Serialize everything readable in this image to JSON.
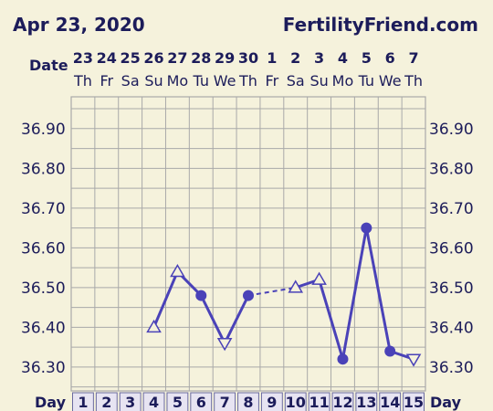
{
  "header": {
    "date": "Apr 23, 2020",
    "site": "FertilityFriend.com"
  },
  "labels": {
    "date_row": "Date",
    "day_row": "Day"
  },
  "chart_data": {
    "type": "line",
    "dates": [
      "23",
      "24",
      "25",
      "26",
      "27",
      "28",
      "29",
      "30",
      "1",
      "2",
      "3",
      "4",
      "5",
      "6",
      "7"
    ],
    "weekdays": [
      "Th",
      "Fr",
      "Sa",
      "Su",
      "Mo",
      "Tu",
      "We",
      "Th",
      "Fr",
      "Sa",
      "Su",
      "Mo",
      "Tu",
      "We",
      "Th"
    ],
    "cycle_days": [
      "1",
      "2",
      "3",
      "4",
      "5",
      "6",
      "7",
      "8",
      "9",
      "10",
      "11",
      "12",
      "13",
      "14",
      "15"
    ],
    "y_ticks": [
      "36.30",
      "36.40",
      "36.50",
      "36.60",
      "36.70",
      "36.80",
      "36.90"
    ],
    "ylim": [
      36.24,
      36.98
    ],
    "grid": true,
    "colors": {
      "line": "#4a42b8",
      "grid": "#a9a9a9",
      "background": "#f5f2dc"
    },
    "points": [
      {
        "day": 4,
        "value": 36.4,
        "marker": "triangle-up"
      },
      {
        "day": 5,
        "value": 36.54,
        "marker": "triangle-up"
      },
      {
        "day": 6,
        "value": 36.48,
        "marker": "circle"
      },
      {
        "day": 7,
        "value": 36.36,
        "marker": "triangle-down"
      },
      {
        "day": 8,
        "value": 36.48,
        "marker": "circle"
      },
      {
        "day": 10,
        "value": 36.5,
        "marker": "triangle-up"
      },
      {
        "day": 11,
        "value": 36.52,
        "marker": "triangle-up"
      },
      {
        "day": 12,
        "value": 36.32,
        "marker": "circle"
      },
      {
        "day": 13,
        "value": 36.65,
        "marker": "circle"
      },
      {
        "day": 14,
        "value": 36.34,
        "marker": "circle"
      },
      {
        "day": 15,
        "value": 36.32,
        "marker": "triangle-down"
      }
    ],
    "segments": [
      {
        "from": 4,
        "to": 5,
        "style": "solid"
      },
      {
        "from": 5,
        "to": 6,
        "style": "solid"
      },
      {
        "from": 6,
        "to": 7,
        "style": "solid"
      },
      {
        "from": 7,
        "to": 8,
        "style": "solid"
      },
      {
        "from": 8,
        "to": 10,
        "style": "dashed"
      },
      {
        "from": 10,
        "to": 11,
        "style": "solid"
      },
      {
        "from": 11,
        "to": 12,
        "style": "solid"
      },
      {
        "from": 12,
        "to": 13,
        "style": "solid"
      },
      {
        "from": 13,
        "to": 14,
        "style": "solid"
      },
      {
        "from": 14,
        "to": 15,
        "style": "solid"
      }
    ]
  }
}
